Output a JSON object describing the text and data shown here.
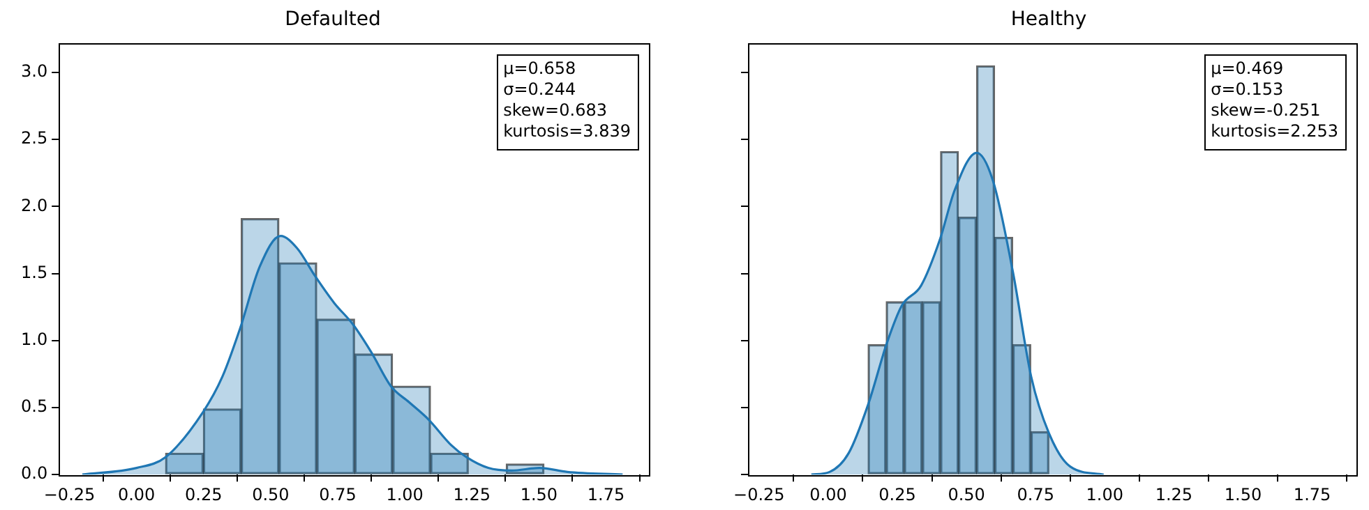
{
  "chart_data": [
    {
      "type": "histogram",
      "title": "Defaulted",
      "xlim": [
        -0.29,
        1.91
      ],
      "ylim": [
        0,
        3.22
      ],
      "xticks": [
        {
          "value": -0.25,
          "label": "−0.25"
        },
        {
          "value": 0,
          "label": "0.00"
        },
        {
          "value": 0.25,
          "label": "0.25"
        },
        {
          "value": 0.5,
          "label": "0.50"
        },
        {
          "value": 0.75,
          "label": "0.75"
        },
        {
          "value": 1,
          "label": "1.00"
        },
        {
          "value": 1.25,
          "label": "1.25"
        },
        {
          "value": 1.5,
          "label": "1.50"
        },
        {
          "value": 1.75,
          "label": "1.75"
        }
      ],
      "yticks": [
        {
          "value": 0,
          "label": "0.0"
        },
        {
          "value": 0.5,
          "label": "0.5"
        },
        {
          "value": 1,
          "label": "1.0"
        },
        {
          "value": 1.5,
          "label": "1.5"
        },
        {
          "value": 2,
          "label": "2.0"
        },
        {
          "value": 2.5,
          "label": "2.5"
        },
        {
          "value": 3,
          "label": "3.0"
        }
      ],
      "grid": false,
      "legend": false,
      "annotations": [
        "μ=0.658\nσ=0.244\nskew=0.683\nkurtosis=3.839"
      ],
      "series": [
        {
          "color": "#1f77b4",
          "bins": [
            0.108,
            0.249,
            0.39,
            0.531,
            0.672,
            0.813,
            0.955,
            1.096,
            1.237,
            1.378,
            1.519
          ],
          "values": [
            0.16,
            0.49,
            1.91,
            1.58,
            1.16,
            0.9,
            0.66,
            0.16,
            0,
            0.08
          ]
        },
        {
          "type": "area",
          "color": "#1f77b4",
          "x": [
            -0.202,
            0.0,
            0.108,
            0.249,
            0.32,
            0.386,
            0.459,
            0.537,
            0.598,
            0.666,
            0.737,
            0.807,
            0.876,
            0.948,
            1.016,
            1.089,
            1.173,
            1.23,
            1.311,
            1.398,
            1.502,
            1.606,
            1.812
          ],
          "values": [
            0,
            0.05,
            0.13,
            0.47,
            0.73,
            1.09,
            1.55,
            1.78,
            1.69,
            1.48,
            1.28,
            1.12,
            0.91,
            0.66,
            0.54,
            0.41,
            0.22,
            0.13,
            0.05,
            0.03,
            0.05,
            0.02,
            0
          ]
        }
      ]
    },
    {
      "type": "histogram",
      "title": "Healthy",
      "xlim": [
        -0.29,
        1.91
      ],
      "ylim": [
        0,
        3.22
      ],
      "tick_labels": "x",
      "xticks": [
        {
          "value": -0.25,
          "label": "−0.25"
        },
        {
          "value": 0,
          "label": "0.00"
        },
        {
          "value": 0.25,
          "label": "0.25"
        },
        {
          "value": 0.5,
          "label": "0.50"
        },
        {
          "value": 0.75,
          "label": "0.75"
        },
        {
          "value": 1,
          "label": "1.00"
        },
        {
          "value": 1.25,
          "label": "1.25"
        },
        {
          "value": 1.5,
          "label": "1.50"
        },
        {
          "value": 1.75,
          "label": "1.75"
        }
      ],
      "yticks": [
        {
          "value": 0,
          "label": null
        },
        {
          "value": 0.5,
          "label": null
        },
        {
          "value": 1,
          "label": null
        },
        {
          "value": 1.5,
          "label": null
        },
        {
          "value": 2,
          "label": null
        },
        {
          "value": 2.5,
          "label": null
        },
        {
          "value": 3,
          "label": null
        }
      ],
      "grid": false,
      "legend": false,
      "annotations": [
        "μ=0.469\nσ=0.153\nskew=-0.251\nkurtosis=2.253"
      ],
      "series": [
        {
          "color": "#1f77b4",
          "bins": [
            0.144,
            0.209,
            0.275,
            0.34,
            0.406,
            0.471,
            0.536,
            0.602,
            0.667,
            0.733,
            0.798
          ],
          "values": [
            0.97,
            1.29,
            1.29,
            1.29,
            2.41,
            1.92,
            3.05,
            1.77,
            0.97,
            0.32
          ]
        },
        {
          "type": "area",
          "color": "#1f77b4",
          "x": [
            -0.061,
            0.005,
            0.074,
            0.144,
            0.212,
            0.266,
            0.336,
            0.405,
            0.457,
            0.537,
            0.596,
            0.668,
            0.734,
            0.798,
            0.875,
            0.996
          ],
          "values": [
            0,
            0.02,
            0.16,
            0.52,
            0.98,
            1.26,
            1.41,
            1.76,
            2.12,
            2.4,
            2.19,
            1.51,
            0.73,
            0.31,
            0.06,
            0
          ]
        }
      ]
    }
  ]
}
